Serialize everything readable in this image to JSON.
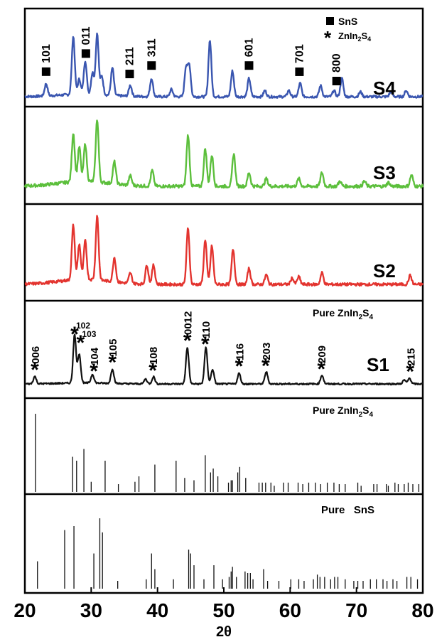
{
  "chart_data": {
    "type": "line",
    "xlabel": "2θ",
    "xlim": [
      20,
      80
    ],
    "x_ticks": [
      "20",
      "30",
      "40",
      "50",
      "60",
      "70",
      "80"
    ],
    "legend": {
      "square": "SnS",
      "star": "ZnIn2S4"
    },
    "panels": [
      {
        "id": "S4",
        "label": "S4",
        "color": "#3a56b0",
        "kind": "pattern",
        "peaks": [
          [
            23.2,
            20
          ],
          [
            27.3,
            95
          ],
          [
            28.2,
            25
          ],
          [
            29.1,
            55
          ],
          [
            30.2,
            35
          ],
          [
            30.9,
            100
          ],
          [
            31.6,
            30
          ],
          [
            33.2,
            45
          ],
          [
            35.9,
            18
          ],
          [
            39.1,
            30
          ],
          [
            42.1,
            12
          ],
          [
            44.3,
            48
          ],
          [
            44.8,
            50
          ],
          [
            47.9,
            92
          ],
          [
            51.3,
            42
          ],
          [
            53.8,
            30
          ],
          [
            56.2,
            10
          ],
          [
            59.8,
            10
          ],
          [
            61.5,
            22
          ],
          [
            64.6,
            18
          ],
          [
            66.6,
            10
          ],
          [
            67.8,
            30
          ],
          [
            70.6,
            8
          ],
          [
            75.2,
            8
          ],
          [
            77.5,
            10
          ]
        ],
        "markers": [
          {
            "x": 23.2,
            "shape": "square",
            "label": "101"
          },
          {
            "x": 29.2,
            "shape": "square",
            "label": "011"
          },
          {
            "x": 35.8,
            "shape": "square",
            "label": "211"
          },
          {
            "x": 39.1,
            "shape": "square",
            "label": "311"
          },
          {
            "x": 53.8,
            "shape": "square",
            "label": "601"
          },
          {
            "x": 61.4,
            "shape": "square",
            "label": "701"
          },
          {
            "x": 67.0,
            "shape": "square",
            "label": "800"
          }
        ]
      },
      {
        "id": "S3",
        "label": "S3",
        "color": "#5cbf3c",
        "kind": "pattern",
        "peaks": [
          [
            27.3,
            78
          ],
          [
            28.2,
            55
          ],
          [
            29.1,
            60
          ],
          [
            30.9,
            100
          ],
          [
            33.5,
            35
          ],
          [
            35.9,
            15
          ],
          [
            39.2,
            25
          ],
          [
            44.6,
            82
          ],
          [
            47.2,
            60
          ],
          [
            48.2,
            50
          ],
          [
            51.5,
            52
          ],
          [
            53.8,
            22
          ],
          [
            56.4,
            12
          ],
          [
            61.3,
            12
          ],
          [
            64.8,
            22
          ],
          [
            67.5,
            8
          ],
          [
            71.2,
            8
          ],
          [
            74.8,
            6
          ],
          [
            78.3,
            18
          ]
        ],
        "markers": []
      },
      {
        "id": "S2",
        "label": "S2",
        "color": "#e3342f",
        "kind": "pattern",
        "peaks": [
          [
            27.3,
            85
          ],
          [
            28.2,
            55
          ],
          [
            29.1,
            60
          ],
          [
            30.9,
            100
          ],
          [
            33.5,
            38
          ],
          [
            35.9,
            16
          ],
          [
            38.4,
            30
          ],
          [
            39.4,
            30
          ],
          [
            44.6,
            88
          ],
          [
            47.2,
            70
          ],
          [
            48.2,
            60
          ],
          [
            51.4,
            55
          ],
          [
            53.8,
            25
          ],
          [
            56.4,
            15
          ],
          [
            60.3,
            10
          ],
          [
            61.3,
            12
          ],
          [
            64.8,
            18
          ],
          [
            78.1,
            14
          ]
        ],
        "markers": []
      },
      {
        "id": "S1",
        "label": "S1",
        "title": "Pure ZnIn2S4",
        "color": "#111111",
        "kind": "pattern",
        "peaks": [
          [
            21.5,
            15
          ],
          [
            27.5,
            100
          ],
          [
            28.2,
            60
          ],
          [
            30.2,
            18
          ],
          [
            33.2,
            30
          ],
          [
            38.2,
            10
          ],
          [
            39.4,
            15
          ],
          [
            44.5,
            75
          ],
          [
            47.3,
            75
          ],
          [
            48.3,
            30
          ],
          [
            52.3,
            22
          ],
          [
            56.4,
            25
          ],
          [
            64.8,
            18
          ],
          [
            77.2,
            8
          ],
          [
            78.0,
            12
          ]
        ],
        "markers": [
          {
            "x": 21.5,
            "shape": "star",
            "label": "006"
          },
          {
            "x": 27.5,
            "shape": "star",
            "label": "102"
          },
          {
            "x": 28.4,
            "shape": "star",
            "label": "103"
          },
          {
            "x": 30.4,
            "shape": "star",
            "label": "104"
          },
          {
            "x": 33.2,
            "shape": "star",
            "label": "105"
          },
          {
            "x": 39.3,
            "shape": "star",
            "label": "108"
          },
          {
            "x": 44.5,
            "shape": "star",
            "label": "0012"
          },
          {
            "x": 47.2,
            "shape": "star",
            "label": "110"
          },
          {
            "x": 52.3,
            "shape": "star",
            "label": "116"
          },
          {
            "x": 56.3,
            "shape": "star",
            "label": "203"
          },
          {
            "x": 64.7,
            "shape": "star",
            "label": "209"
          },
          {
            "x": 78.1,
            "shape": "star",
            "label": "215"
          }
        ]
      },
      {
        "id": "ref-znin2s4",
        "title": "Pure ZnIn2S4",
        "color": "#111111",
        "kind": "sticks",
        "sticks": [
          [
            21.6,
            100
          ],
          [
            27.2,
            45
          ],
          [
            27.8,
            40
          ],
          [
            28.9,
            55
          ],
          [
            30.0,
            13
          ],
          [
            32.1,
            40
          ],
          [
            34.1,
            10
          ],
          [
            36.6,
            13
          ],
          [
            37.2,
            20
          ],
          [
            39.6,
            35
          ],
          [
            42.8,
            40
          ],
          [
            44.1,
            18
          ],
          [
            45.5,
            15
          ],
          [
            47.2,
            47
          ],
          [
            48.0,
            25
          ],
          [
            48.4,
            30
          ],
          [
            49.1,
            20
          ],
          [
            50.7,
            12
          ],
          [
            51.1,
            15
          ],
          [
            51.3,
            15
          ],
          [
            52.1,
            25
          ],
          [
            52.4,
            32
          ],
          [
            53.3,
            18
          ],
          [
            55.3,
            12
          ],
          [
            55.8,
            12
          ],
          [
            56.3,
            12
          ],
          [
            57.1,
            12
          ],
          [
            57.6,
            8
          ],
          [
            59.0,
            12
          ],
          [
            59.7,
            12
          ],
          [
            61.2,
            12
          ],
          [
            61.9,
            10
          ],
          [
            62.8,
            12
          ],
          [
            63.8,
            12
          ],
          [
            64.6,
            10
          ],
          [
            65.6,
            12
          ],
          [
            66.6,
            12
          ],
          [
            67.4,
            10
          ],
          [
            68.3,
            10
          ],
          [
            70.2,
            12
          ],
          [
            70.7,
            8
          ],
          [
            72.6,
            10
          ],
          [
            73.1,
            10
          ],
          [
            74.5,
            10
          ],
          [
            74.8,
            8
          ],
          [
            75.8,
            12
          ],
          [
            76.3,
            10
          ],
          [
            77.2,
            10
          ],
          [
            77.8,
            12
          ],
          [
            78.5,
            10
          ],
          [
            79.4,
            10
          ]
        ]
      },
      {
        "id": "ref-sns",
        "title": "Pure SnS",
        "color": "#111111",
        "kind": "sticks",
        "sticks": [
          [
            21.9,
            35
          ],
          [
            26.0,
            75
          ],
          [
            27.4,
            80
          ],
          [
            30.4,
            45
          ],
          [
            31.3,
            90
          ],
          [
            31.7,
            72
          ],
          [
            34.0,
            10
          ],
          [
            38.3,
            12
          ],
          [
            39.1,
            45
          ],
          [
            39.6,
            25
          ],
          [
            42.4,
            12
          ],
          [
            44.7,
            50
          ],
          [
            45.0,
            45
          ],
          [
            45.5,
            30
          ],
          [
            47.0,
            12
          ],
          [
            48.5,
            30
          ],
          [
            49.8,
            12
          ],
          [
            50.8,
            15
          ],
          [
            51.1,
            22
          ],
          [
            51.3,
            28
          ],
          [
            51.9,
            15
          ],
          [
            53.2,
            22
          ],
          [
            53.6,
            20
          ],
          [
            54.0,
            20
          ],
          [
            54.4,
            12
          ],
          [
            56.0,
            25
          ],
          [
            56.6,
            10
          ],
          [
            58.3,
            10
          ],
          [
            60.1,
            12
          ],
          [
            61.3,
            12
          ],
          [
            62.1,
            10
          ],
          [
            63.5,
            12
          ],
          [
            64.1,
            18
          ],
          [
            64.5,
            15
          ],
          [
            65.2,
            15
          ],
          [
            66.1,
            12
          ],
          [
            66.7,
            15
          ],
          [
            67.2,
            15
          ],
          [
            68.3,
            12
          ],
          [
            69.6,
            10
          ],
          [
            70.2,
            10
          ],
          [
            71.0,
            10
          ],
          [
            72.1,
            12
          ],
          [
            73.0,
            12
          ],
          [
            74.0,
            12
          ],
          [
            74.6,
            10
          ],
          [
            75.5,
            12
          ],
          [
            76.1,
            10
          ],
          [
            77.6,
            15
          ],
          [
            78.2,
            15
          ],
          [
            79.2,
            12
          ]
        ]
      }
    ]
  }
}
